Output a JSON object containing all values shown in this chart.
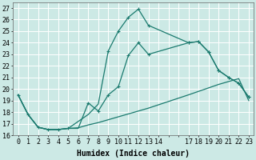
{
  "xlabel": "Humidex (Indice chaleur)",
  "bg_color": "#cce9e5",
  "grid_color": "#ffffff",
  "line_color": "#1a7a6e",
  "xtick_labels": [
    "0",
    "1",
    "2",
    "3",
    "4",
    "5",
    "6",
    "7",
    "8",
    "9",
    "10",
    "11",
    "12",
    "13",
    "14",
    "",
    "",
    "17",
    "18",
    "19",
    "20",
    "21",
    "22",
    "23"
  ],
  "xtick_positions": [
    0,
    1,
    2,
    3,
    4,
    5,
    6,
    7,
    8,
    9,
    10,
    11,
    12,
    13,
    14,
    15,
    16,
    17,
    18,
    19,
    20,
    21,
    22,
    23
  ],
  "xlim": [
    -0.5,
    23.5
  ],
  "ylim": [
    16,
    27.5
  ],
  "yticks": [
    16,
    17,
    18,
    19,
    20,
    21,
    22,
    23,
    24,
    25,
    26,
    27
  ],
  "line1_x": [
    0,
    1,
    2,
    3,
    4,
    5,
    6,
    7,
    8,
    9,
    10,
    11,
    12,
    13,
    17,
    18,
    19,
    20,
    21,
    22,
    23
  ],
  "line1_y": [
    19.5,
    17.8,
    16.7,
    16.5,
    16.5,
    16.6,
    16.6,
    18.8,
    18.1,
    19.5,
    20.2,
    22.9,
    24.0,
    23.0,
    24.0,
    24.1,
    23.2,
    21.6,
    21.0,
    20.5,
    19.3
  ],
  "line2_x": [
    0,
    1,
    2,
    3,
    4,
    5,
    7,
    8,
    9,
    10,
    11,
    12,
    13,
    17,
    18,
    19,
    20,
    21,
    22,
    23
  ],
  "line2_y": [
    19.5,
    17.8,
    16.7,
    16.5,
    16.5,
    16.6,
    17.8,
    18.7,
    23.3,
    25.0,
    26.2,
    26.9,
    25.5,
    24.0,
    24.1,
    23.2,
    21.6,
    21.0,
    20.5,
    19.3
  ],
  "line3_x": [
    0,
    1,
    2,
    3,
    4,
    5,
    6,
    7,
    8,
    9,
    10,
    11,
    12,
    13,
    17,
    18,
    19,
    20,
    21,
    22,
    23
  ],
  "line3_y": [
    19.5,
    17.8,
    16.7,
    16.5,
    16.5,
    16.6,
    16.65,
    16.9,
    17.1,
    17.35,
    17.6,
    17.85,
    18.1,
    18.35,
    19.5,
    19.8,
    20.1,
    20.4,
    20.65,
    20.9,
    19.0
  ],
  "markers1_x": [
    0,
    1,
    2,
    3,
    4,
    5,
    7,
    8,
    9,
    10,
    11,
    12,
    13,
    17,
    18,
    19,
    20,
    21,
    22,
    23
  ],
  "markers1_y": [
    19.5,
    17.8,
    16.7,
    16.5,
    16.5,
    16.6,
    18.8,
    18.1,
    19.5,
    20.2,
    22.9,
    24.0,
    23.0,
    24.0,
    24.1,
    23.2,
    21.6,
    21.0,
    20.5,
    19.3
  ],
  "markers2_x": [
    9,
    10,
    11,
    12,
    13,
    17,
    18,
    19,
    20,
    21,
    22,
    23
  ],
  "markers2_y": [
    23.3,
    25.0,
    26.2,
    26.9,
    25.5,
    24.0,
    24.1,
    23.2,
    21.6,
    21.0,
    20.5,
    19.3
  ],
  "xlabel_fontsize": 7,
  "tick_fontsize": 6
}
